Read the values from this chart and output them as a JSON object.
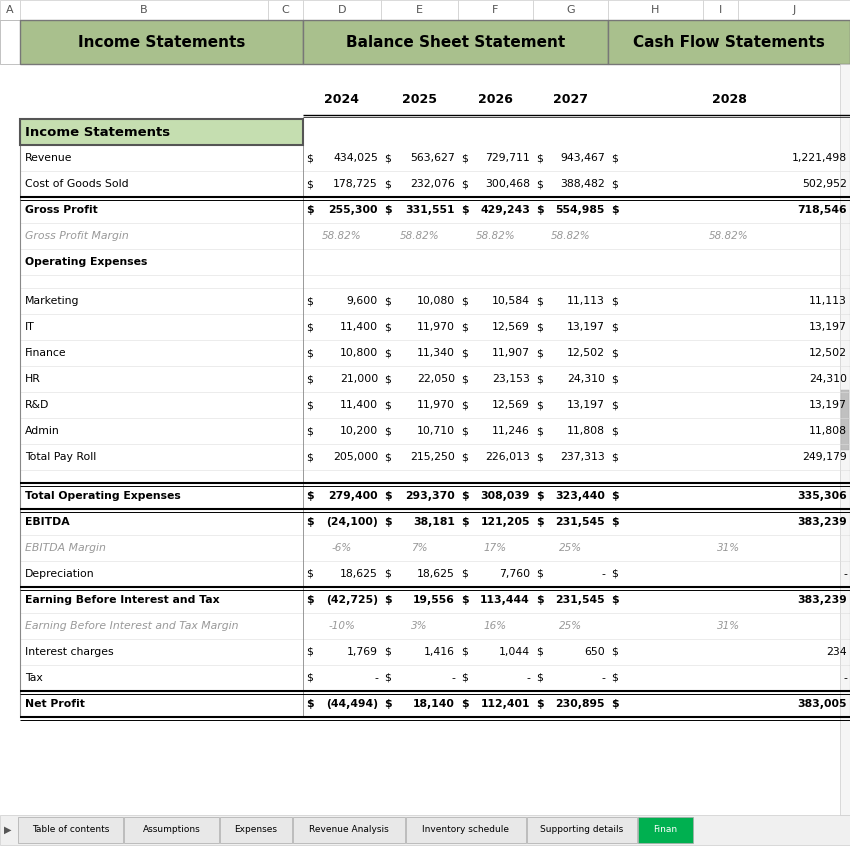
{
  "header_tabs": [
    "Income Statements",
    "Balance Sheet Statement",
    "Cash Flow Statements"
  ],
  "col_headers": [
    "A",
    "B",
    "C",
    "D",
    "E",
    "F",
    "G",
    "H",
    "I",
    "J"
  ],
  "years": [
    "2024",
    "2025",
    "2026",
    "2027",
    "2028"
  ],
  "section_header": "Income Statements",
  "rows": [
    {
      "label": "Revenue",
      "bold": false,
      "italic": false,
      "gray": false,
      "dollar": true,
      "vals": [
        "434,025",
        "563,627",
        "729,711",
        "943,467",
        "1,221,498"
      ],
      "top_border": false,
      "double_border": false,
      "blank": false
    },
    {
      "label": "Cost of Goods Sold",
      "bold": false,
      "italic": false,
      "gray": false,
      "dollar": true,
      "vals": [
        "178,725",
        "232,076",
        "300,468",
        "388,482",
        "502,952"
      ],
      "top_border": false,
      "double_border": false,
      "blank": false
    },
    {
      "label": "Gross Profit",
      "bold": true,
      "italic": false,
      "gray": false,
      "dollar": true,
      "vals": [
        "255,300",
        "331,551",
        "429,243",
        "554,985",
        "718,546"
      ],
      "top_border": true,
      "double_border": true,
      "blank": false
    },
    {
      "label": "Gross Profit Margin",
      "bold": false,
      "italic": true,
      "gray": true,
      "dollar": false,
      "vals": [
        "58.82%",
        "58.82%",
        "58.82%",
        "58.82%",
        "58.82%"
      ],
      "top_border": false,
      "double_border": false,
      "blank": false
    },
    {
      "label": "Operating Expenses",
      "bold": true,
      "italic": false,
      "gray": false,
      "dollar": false,
      "vals": [
        "",
        "",
        "",
        "",
        ""
      ],
      "top_border": false,
      "double_border": false,
      "blank": false
    },
    {
      "label": "",
      "bold": false,
      "italic": false,
      "gray": false,
      "dollar": false,
      "vals": [
        "",
        "",
        "",
        "",
        ""
      ],
      "top_border": false,
      "double_border": false,
      "blank": true
    },
    {
      "label": "Marketing",
      "bold": false,
      "italic": false,
      "gray": false,
      "dollar": true,
      "vals": [
        "9,600",
        "10,080",
        "10,584",
        "11,113",
        "11,113"
      ],
      "top_border": false,
      "double_border": false,
      "blank": false
    },
    {
      "label": "IT",
      "bold": false,
      "italic": false,
      "gray": false,
      "dollar": true,
      "vals": [
        "11,400",
        "11,970",
        "12,569",
        "13,197",
        "13,197"
      ],
      "top_border": false,
      "double_border": false,
      "blank": false
    },
    {
      "label": "Finance",
      "bold": false,
      "italic": false,
      "gray": false,
      "dollar": true,
      "vals": [
        "10,800",
        "11,340",
        "11,907",
        "12,502",
        "12,502"
      ],
      "top_border": false,
      "double_border": false,
      "blank": false
    },
    {
      "label": "HR",
      "bold": false,
      "italic": false,
      "gray": false,
      "dollar": true,
      "vals": [
        "21,000",
        "22,050",
        "23,153",
        "24,310",
        "24,310"
      ],
      "top_border": false,
      "double_border": false,
      "blank": false
    },
    {
      "label": "R&D",
      "bold": false,
      "italic": false,
      "gray": false,
      "dollar": true,
      "vals": [
        "11,400",
        "11,970",
        "12,569",
        "13,197",
        "13,197"
      ],
      "top_border": false,
      "double_border": false,
      "blank": false
    },
    {
      "label": "Admin",
      "bold": false,
      "italic": false,
      "gray": false,
      "dollar": true,
      "vals": [
        "10,200",
        "10,710",
        "11,246",
        "11,808",
        "11,808"
      ],
      "top_border": false,
      "double_border": false,
      "blank": false
    },
    {
      "label": "Total Pay Roll",
      "bold": false,
      "italic": false,
      "gray": false,
      "dollar": true,
      "vals": [
        "205,000",
        "215,250",
        "226,013",
        "237,313",
        "249,179"
      ],
      "top_border": false,
      "double_border": false,
      "blank": false
    },
    {
      "label": "",
      "bold": false,
      "italic": false,
      "gray": false,
      "dollar": false,
      "vals": [
        "",
        "",
        "",
        "",
        ""
      ],
      "top_border": false,
      "double_border": false,
      "blank": true
    },
    {
      "label": "Total Operating Expenses",
      "bold": true,
      "italic": false,
      "gray": false,
      "dollar": true,
      "vals": [
        "279,400",
        "293,370",
        "308,039",
        "323,440",
        "335,306"
      ],
      "top_border": true,
      "double_border": true,
      "blank": false
    },
    {
      "label": "EBITDA",
      "bold": true,
      "italic": false,
      "gray": false,
      "dollar": true,
      "vals": [
        "(24,100)",
        "38,181",
        "121,205",
        "231,545",
        "383,239"
      ],
      "top_border": true,
      "double_border": true,
      "blank": false
    },
    {
      "label": "EBITDA Margin",
      "bold": false,
      "italic": true,
      "gray": true,
      "dollar": false,
      "vals": [
        "-6%",
        "7%",
        "17%",
        "25%",
        "31%"
      ],
      "top_border": false,
      "double_border": false,
      "blank": false
    },
    {
      "label": "Depreciation",
      "bold": false,
      "italic": false,
      "gray": false,
      "dollar": true,
      "vals": [
        "18,625",
        "18,625",
        "7,760",
        "-",
        "-"
      ],
      "top_border": false,
      "double_border": false,
      "blank": false
    },
    {
      "label": "Earning Before Interest and Tax",
      "bold": true,
      "italic": false,
      "gray": false,
      "dollar": true,
      "vals": [
        "(42,725)",
        "19,556",
        "113,444",
        "231,545",
        "383,239"
      ],
      "top_border": true,
      "double_border": true,
      "blank": false
    },
    {
      "label": "Earning Before Interest and Tax Margin",
      "bold": false,
      "italic": true,
      "gray": true,
      "dollar": false,
      "vals": [
        "-10%",
        "3%",
        "16%",
        "25%",
        "31%"
      ],
      "top_border": false,
      "double_border": false,
      "blank": false
    },
    {
      "label": "Interest charges",
      "bold": false,
      "italic": false,
      "gray": false,
      "dollar": true,
      "vals": [
        "1,769",
        "1,416",
        "1,044",
        "650",
        "234"
      ],
      "top_border": false,
      "double_border": false,
      "blank": false
    },
    {
      "label": "Tax",
      "bold": false,
      "italic": false,
      "gray": false,
      "dollar": true,
      "vals": [
        "-",
        "-",
        "-",
        "-",
        "-"
      ],
      "top_border": false,
      "double_border": false,
      "blank": false
    },
    {
      "label": "Net Profit",
      "bold": true,
      "italic": false,
      "gray": false,
      "dollar": true,
      "vals": [
        "(44,494)",
        "18,140",
        "112,401",
        "230,895",
        "383,005"
      ],
      "top_border": true,
      "double_border": true,
      "blank": false
    }
  ],
  "tab_bg_green": "#a9c08d",
  "section_header_bg": "#c5deb0",
  "gray_text_color": "#999999",
  "bottom_tabs": [
    "Table of contents",
    "Assumptions",
    "Expenses",
    "Revenue Analysis",
    "Inventory schedule",
    "Supporting details",
    "Finan"
  ],
  "active_tab_color": "#00b050"
}
